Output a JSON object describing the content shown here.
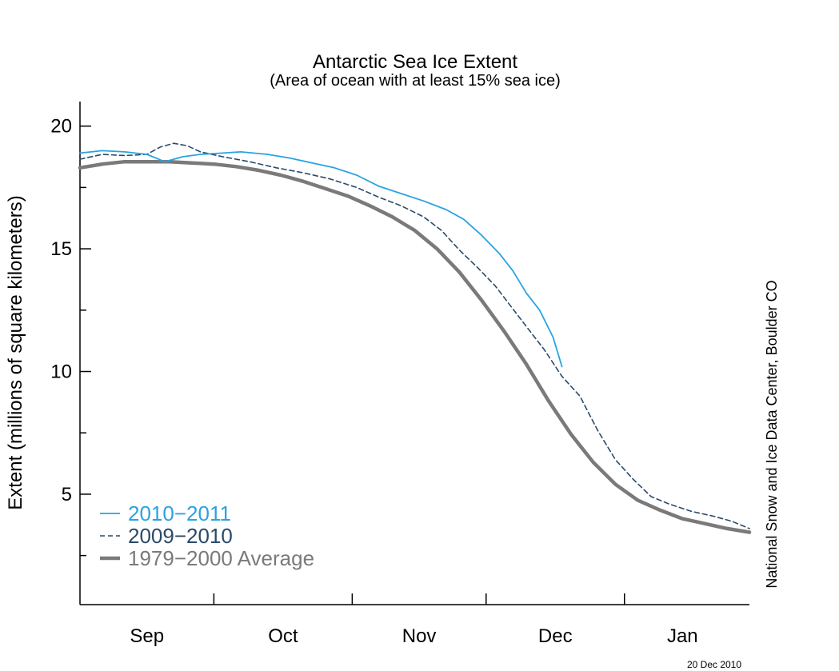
{
  "chart_data": {
    "type": "line",
    "title": "Antarctic Sea Ice Extent",
    "subtitle": "(Area of ocean with at least 15% sea ice)",
    "ylabel": "Extent (millions of square kilometers)",
    "xlabel": "",
    "credit": "National Snow and Ice Data Center, Boulder CO",
    "date_stamp": "20 Dec 2010",
    "ylim": [
      0.5,
      21
    ],
    "xlim": [
      0,
      150
    ],
    "yticks": [
      {
        "value": 20,
        "label": "20"
      },
      {
        "value": 15,
        "label": "15"
      },
      {
        "value": 10,
        "label": "10"
      },
      {
        "value": 5,
        "label": "5"
      }
    ],
    "month_boundaries": [
      30,
      61,
      91,
      122
    ],
    "month_labels": [
      {
        "label": "Sep",
        "center": 15
      },
      {
        "label": "Oct",
        "center": 45.5
      },
      {
        "label": "Nov",
        "center": 76
      },
      {
        "label": "Dec",
        "center": 106.5
      },
      {
        "label": "Jan",
        "center": 135
      }
    ],
    "grid": false,
    "legend_position": "bottom-left",
    "series": [
      {
        "name": "2010−2011",
        "color": "#29a3e0",
        "style": "solid",
        "points": [
          [
            0,
            18.9
          ],
          [
            5,
            19.0
          ],
          [
            10,
            18.95
          ],
          [
            15,
            18.85
          ],
          [
            19,
            18.55
          ],
          [
            23,
            18.75
          ],
          [
            27,
            18.85
          ],
          [
            32,
            18.9
          ],
          [
            36,
            18.95
          ],
          [
            42,
            18.85
          ],
          [
            47,
            18.7
          ],
          [
            52,
            18.5
          ],
          [
            57,
            18.3
          ],
          [
            62,
            18.0
          ],
          [
            67,
            17.55
          ],
          [
            72,
            17.25
          ],
          [
            77,
            16.95
          ],
          [
            82,
            16.6
          ],
          [
            86,
            16.2
          ],
          [
            90,
            15.55
          ],
          [
            94,
            14.8
          ],
          [
            97,
            14.1
          ],
          [
            100,
            13.2
          ],
          [
            103,
            12.5
          ],
          [
            106,
            11.4
          ],
          [
            108,
            10.2
          ]
        ]
      },
      {
        "name": "2009−2010",
        "color": "#2a4a6a",
        "style": "dashed",
        "points": [
          [
            0,
            18.65
          ],
          [
            5,
            18.85
          ],
          [
            10,
            18.8
          ],
          [
            15,
            18.85
          ],
          [
            18,
            19.15
          ],
          [
            21,
            19.3
          ],
          [
            24,
            19.2
          ],
          [
            27,
            18.95
          ],
          [
            32,
            18.75
          ],
          [
            38,
            18.55
          ],
          [
            44,
            18.3
          ],
          [
            50,
            18.1
          ],
          [
            56,
            17.85
          ],
          [
            62,
            17.5
          ],
          [
            67,
            17.1
          ],
          [
            72,
            16.75
          ],
          [
            77,
            16.3
          ],
          [
            81,
            15.75
          ],
          [
            85,
            14.95
          ],
          [
            89,
            14.25
          ],
          [
            93,
            13.5
          ],
          [
            97,
            12.55
          ],
          [
            101,
            11.6
          ],
          [
            104,
            10.9
          ],
          [
            108,
            9.8
          ],
          [
            112,
            9.0
          ],
          [
            116,
            7.6
          ],
          [
            120,
            6.4
          ],
          [
            124,
            5.6
          ],
          [
            128,
            4.9
          ],
          [
            132,
            4.6
          ],
          [
            137,
            4.3
          ],
          [
            142,
            4.1
          ],
          [
            146,
            3.9
          ],
          [
            150,
            3.6
          ]
        ]
      },
      {
        "name": "1979−2000 Average",
        "color": "#7a7a7a",
        "style": "thick",
        "points": [
          [
            0,
            18.3
          ],
          [
            5,
            18.45
          ],
          [
            10,
            18.55
          ],
          [
            15,
            18.55
          ],
          [
            20,
            18.55
          ],
          [
            25,
            18.5
          ],
          [
            30,
            18.45
          ],
          [
            35,
            18.35
          ],
          [
            40,
            18.2
          ],
          [
            45,
            18.0
          ],
          [
            50,
            17.75
          ],
          [
            55,
            17.45
          ],
          [
            60,
            17.15
          ],
          [
            65,
            16.75
          ],
          [
            70,
            16.3
          ],
          [
            75,
            15.75
          ],
          [
            80,
            15.0
          ],
          [
            85,
            14.05
          ],
          [
            90,
            12.9
          ],
          [
            95,
            11.65
          ],
          [
            100,
            10.3
          ],
          [
            105,
            8.8
          ],
          [
            110,
            7.45
          ],
          [
            115,
            6.3
          ],
          [
            120,
            5.4
          ],
          [
            125,
            4.75
          ],
          [
            130,
            4.35
          ],
          [
            135,
            4.0
          ],
          [
            140,
            3.8
          ],
          [
            145,
            3.6
          ],
          [
            150,
            3.45
          ]
        ]
      }
    ]
  }
}
